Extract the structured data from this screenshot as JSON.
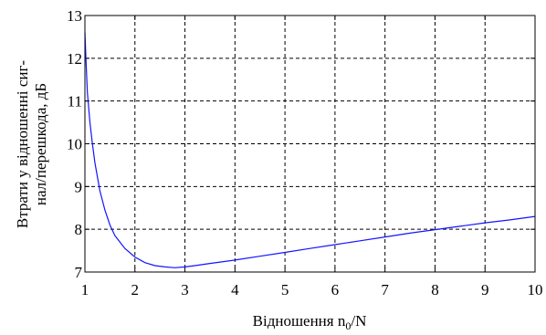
{
  "chart_data": {
    "type": "line",
    "title": "",
    "xlabel": {
      "main": "Відношення n",
      "subscript": "0",
      "suffix": "/N"
    },
    "ylabel_lines": [
      "Втрати у відношенні сиг-",
      "нал/перешкода, дБ"
    ],
    "xlim": [
      1,
      10
    ],
    "ylim": [
      7,
      13
    ],
    "xticks": [
      1,
      2,
      3,
      4,
      5,
      6,
      7,
      8,
      9,
      10
    ],
    "yticks": [
      7,
      8,
      9,
      10,
      11,
      12,
      13
    ],
    "grid": true,
    "line_color": "#1414ff",
    "series": [
      {
        "x": [
          1.0,
          1.02,
          1.05,
          1.1,
          1.15,
          1.2,
          1.3,
          1.4,
          1.5,
          1.6,
          1.8,
          2.0,
          2.2,
          2.4,
          2.6,
          2.8,
          3.0,
          3.2,
          3.5,
          4.0,
          4.5,
          5.0,
          5.5,
          6.0,
          6.5,
          7.0,
          7.5,
          8.0,
          8.5,
          9.0,
          9.5,
          10.0
        ],
        "y": [
          12.6,
          12.0,
          11.2,
          10.5,
          10.0,
          9.55,
          8.9,
          8.45,
          8.1,
          7.85,
          7.55,
          7.35,
          7.22,
          7.15,
          7.12,
          7.1,
          7.12,
          7.15,
          7.2,
          7.28,
          7.37,
          7.46,
          7.55,
          7.64,
          7.73,
          7.82,
          7.91,
          7.99,
          8.07,
          8.15,
          8.22,
          8.3
        ]
      }
    ]
  }
}
